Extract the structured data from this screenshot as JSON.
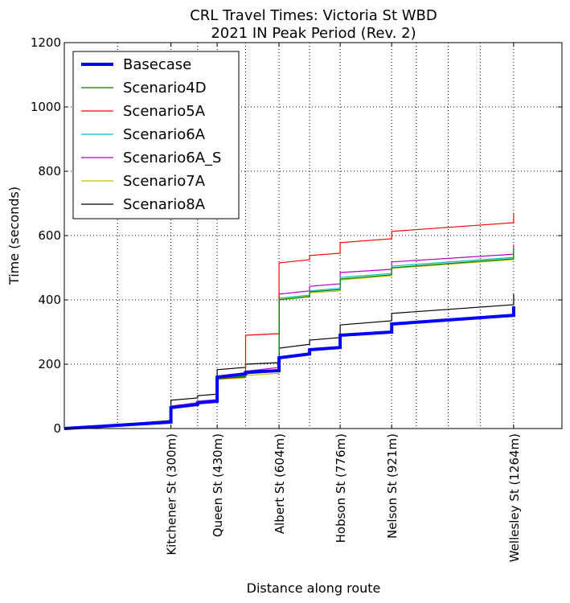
{
  "chart_data": {
    "type": "line",
    "title": [
      "CRL Travel Times: Victoria St WBD",
      "2021 IN Peak Period (Rev. 2)"
    ],
    "xlabel": "Distance along route",
    "ylabel": "Time (seconds)",
    "xlim": [
      0,
      1400
    ],
    "ylim": [
      0,
      1200
    ],
    "yticks": [
      0,
      200,
      400,
      600,
      800,
      1000,
      1200
    ],
    "grid": true,
    "legend_position": "top-left",
    "xticks": [
      {
        "x": 300,
        "label": "Kitchener St (300m)"
      },
      {
        "x": 430,
        "label": "Queen St (430m)"
      },
      {
        "x": 604,
        "label": "Albert St (604m)"
      },
      {
        "x": 776,
        "label": "Hobson St (776m)"
      },
      {
        "x": 921,
        "label": "Nelson St (921m)"
      },
      {
        "x": 1264,
        "label": "Wellesley St (1264m)"
      }
    ],
    "minor_grid_x": [
      150,
      375,
      510,
      690,
      990,
      1080,
      1170,
      1400
    ],
    "series": [
      {
        "name": "Basecase",
        "color": "#0000ff",
        "width": 4,
        "points": [
          [
            0,
            0
          ],
          [
            300,
            20
          ],
          [
            300,
            65
          ],
          [
            375,
            75
          ],
          [
            375,
            80
          ],
          [
            430,
            85
          ],
          [
            430,
            160
          ],
          [
            510,
            170
          ],
          [
            510,
            175
          ],
          [
            604,
            180
          ],
          [
            604,
            220
          ],
          [
            690,
            232
          ],
          [
            690,
            245
          ],
          [
            776,
            252
          ],
          [
            776,
            290
          ],
          [
            921,
            300
          ],
          [
            921,
            325
          ],
          [
            1264,
            352
          ],
          [
            1264,
            380
          ]
        ]
      },
      {
        "name": "Scenario4D",
        "color": "#008000",
        "width": 1.2,
        "points": [
          [
            0,
            0
          ],
          [
            300,
            22
          ],
          [
            300,
            65
          ],
          [
            375,
            75
          ],
          [
            375,
            80
          ],
          [
            430,
            85
          ],
          [
            430,
            155
          ],
          [
            510,
            162
          ],
          [
            510,
            170
          ],
          [
            604,
            178
          ],
          [
            604,
            400
          ],
          [
            690,
            410
          ],
          [
            690,
            425
          ],
          [
            776,
            432
          ],
          [
            776,
            465
          ],
          [
            921,
            478
          ],
          [
            921,
            500
          ],
          [
            1264,
            528
          ],
          [
            1264,
            560
          ]
        ]
      },
      {
        "name": "Scenario5A",
        "color": "#ff0000",
        "width": 1.2,
        "points": [
          [
            0,
            0
          ],
          [
            300,
            22
          ],
          [
            300,
            68
          ],
          [
            375,
            78
          ],
          [
            375,
            82
          ],
          [
            430,
            88
          ],
          [
            430,
            155
          ],
          [
            510,
            160
          ],
          [
            510,
            290
          ],
          [
            604,
            295
          ],
          [
            604,
            515
          ],
          [
            690,
            525
          ],
          [
            690,
            538
          ],
          [
            776,
            545
          ],
          [
            776,
            578
          ],
          [
            921,
            590
          ],
          [
            921,
            613
          ],
          [
            1264,
            640
          ],
          [
            1264,
            670
          ]
        ]
      },
      {
        "name": "Scenario6A",
        "color": "#00bfbf",
        "width": 1.2,
        "points": [
          [
            0,
            0
          ],
          [
            300,
            22
          ],
          [
            300,
            66
          ],
          [
            375,
            76
          ],
          [
            375,
            81
          ],
          [
            430,
            86
          ],
          [
            430,
            157
          ],
          [
            510,
            164
          ],
          [
            510,
            172
          ],
          [
            604,
            180
          ],
          [
            604,
            405
          ],
          [
            690,
            415
          ],
          [
            690,
            428
          ],
          [
            776,
            436
          ],
          [
            776,
            470
          ],
          [
            921,
            482
          ],
          [
            921,
            505
          ],
          [
            1264,
            532
          ],
          [
            1264,
            560
          ]
        ]
      },
      {
        "name": "Scenario6A_S",
        "color": "#bf00bf",
        "width": 1.2,
        "points": [
          [
            0,
            0
          ],
          [
            300,
            24
          ],
          [
            300,
            70
          ],
          [
            375,
            80
          ],
          [
            375,
            85
          ],
          [
            430,
            90
          ],
          [
            430,
            163
          ],
          [
            510,
            170
          ],
          [
            510,
            178
          ],
          [
            604,
            190
          ],
          [
            604,
            418
          ],
          [
            690,
            428
          ],
          [
            690,
            442
          ],
          [
            776,
            450
          ],
          [
            776,
            485
          ],
          [
            921,
            495
          ],
          [
            921,
            518
          ],
          [
            1264,
            542
          ],
          [
            1264,
            572
          ]
        ]
      },
      {
        "name": "Scenario7A",
        "color": "#bfbf00",
        "width": 1.2,
        "points": [
          [
            0,
            0
          ],
          [
            300,
            21
          ],
          [
            300,
            63
          ],
          [
            375,
            73
          ],
          [
            375,
            78
          ],
          [
            430,
            83
          ],
          [
            430,
            152
          ],
          [
            510,
            158
          ],
          [
            510,
            165
          ],
          [
            604,
            172
          ],
          [
            604,
            402
          ],
          [
            690,
            412
          ],
          [
            690,
            422
          ],
          [
            776,
            428
          ],
          [
            776,
            462
          ],
          [
            921,
            475
          ],
          [
            921,
            498
          ],
          [
            1264,
            525
          ],
          [
            1264,
            555
          ]
        ]
      },
      {
        "name": "Scenario8A",
        "color": "#000000",
        "width": 1.2,
        "points": [
          [
            0,
            0
          ],
          [
            300,
            25
          ],
          [
            300,
            88
          ],
          [
            375,
            95
          ],
          [
            375,
            102
          ],
          [
            430,
            107
          ],
          [
            430,
            183
          ],
          [
            510,
            190
          ],
          [
            510,
            200
          ],
          [
            604,
            205
          ],
          [
            604,
            250
          ],
          [
            690,
            262
          ],
          [
            690,
            275
          ],
          [
            776,
            283
          ],
          [
            776,
            322
          ],
          [
            921,
            335
          ],
          [
            921,
            358
          ],
          [
            1264,
            385
          ],
          [
            1264,
            418
          ]
        ]
      }
    ]
  }
}
